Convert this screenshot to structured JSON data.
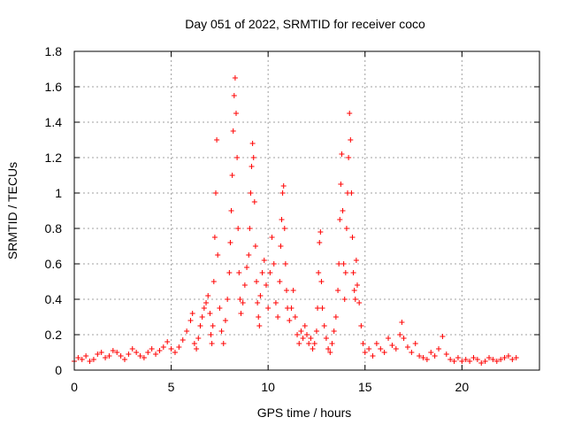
{
  "chart_data": {
    "type": "scatter",
    "title": "Day 051 of 2022, SRMTID for receiver coco",
    "xlabel": "GPS time / hours",
    "ylabel": "SRMTID / TECUs",
    "xlim": [
      0,
      24
    ],
    "ylim": [
      0,
      1.8
    ],
    "xticks": [
      0,
      5,
      10,
      15,
      20
    ],
    "xtick_labels": [
      "0",
      "5",
      "10",
      "15",
      "20"
    ],
    "yticks": [
      0,
      0.2,
      0.4,
      0.6,
      0.8,
      1.0,
      1.2,
      1.4,
      1.6,
      1.8
    ],
    "ytick_labels": [
      "0",
      "0.2",
      "0.4",
      "0.6",
      "0.8",
      "1",
      "1.2",
      "1.4",
      "1.6",
      "1.8"
    ],
    "grid": true,
    "marker": "+",
    "color": "#ff0000",
    "series": [
      {
        "name": "SRMTID",
        "x": [
          0.0,
          0.2,
          0.4,
          0.6,
          0.8,
          1.0,
          1.2,
          1.4,
          1.6,
          1.8,
          2.0,
          2.2,
          2.4,
          2.6,
          2.8,
          3.0,
          3.2,
          3.4,
          3.6,
          3.8,
          4.0,
          4.2,
          4.4,
          4.6,
          4.8,
          5.0,
          5.2,
          5.4,
          5.6,
          5.8,
          6.0,
          6.1,
          6.2,
          6.3,
          6.4,
          6.5,
          6.6,
          6.7,
          6.8,
          6.9,
          7.0,
          7.05,
          7.1,
          7.15,
          7.2,
          7.25,
          7.3,
          7.35,
          7.4,
          7.5,
          7.6,
          7.7,
          7.8,
          7.9,
          8.0,
          8.05,
          8.1,
          8.15,
          8.2,
          8.25,
          8.3,
          8.35,
          8.4,
          8.45,
          8.5,
          8.55,
          8.6,
          8.7,
          8.8,
          8.9,
          9.0,
          9.05,
          9.1,
          9.15,
          9.2,
          9.25,
          9.3,
          9.35,
          9.4,
          9.45,
          9.5,
          9.55,
          9.6,
          9.7,
          9.8,
          9.9,
          10.0,
          10.1,
          10.2,
          10.3,
          10.4,
          10.5,
          10.6,
          10.65,
          10.7,
          10.75,
          10.8,
          10.85,
          10.9,
          10.95,
          11.0,
          11.1,
          11.2,
          11.3,
          11.4,
          11.5,
          11.6,
          11.7,
          11.8,
          11.9,
          12.0,
          12.1,
          12.2,
          12.3,
          12.4,
          12.5,
          12.55,
          12.6,
          12.65,
          12.7,
          12.75,
          12.8,
          12.9,
          13.0,
          13.1,
          13.2,
          13.3,
          13.4,
          13.5,
          13.6,
          13.65,
          13.7,
          13.75,
          13.8,
          13.85,
          13.9,
          13.95,
          14.0,
          14.05,
          14.1,
          14.15,
          14.2,
          14.25,
          14.3,
          14.35,
          14.4,
          14.45,
          14.5,
          14.55,
          14.6,
          14.7,
          14.8,
          14.9,
          15.0,
          15.2,
          15.4,
          15.6,
          15.8,
          16.0,
          16.2,
          16.4,
          16.6,
          16.8,
          16.9,
          17.0,
          17.2,
          17.4,
          17.6,
          17.8,
          18.0,
          18.2,
          18.4,
          18.6,
          18.8,
          19.0,
          19.2,
          19.4,
          19.6,
          19.8,
          20.0,
          20.2,
          20.4,
          20.6,
          20.8,
          21.0,
          21.2,
          21.4,
          21.6,
          21.8,
          22.0,
          22.2,
          22.4,
          22.6,
          22.8
        ],
        "y": [
          0.05,
          0.07,
          0.06,
          0.08,
          0.05,
          0.06,
          0.09,
          0.1,
          0.07,
          0.08,
          0.11,
          0.1,
          0.08,
          0.06,
          0.09,
          0.12,
          0.1,
          0.08,
          0.07,
          0.1,
          0.12,
          0.09,
          0.11,
          0.13,
          0.16,
          0.12,
          0.1,
          0.13,
          0.17,
          0.22,
          0.28,
          0.32,
          0.15,
          0.12,
          0.18,
          0.25,
          0.3,
          0.35,
          0.38,
          0.42,
          0.32,
          0.2,
          0.15,
          0.25,
          0.5,
          0.75,
          1.0,
          1.3,
          0.65,
          0.35,
          0.22,
          0.15,
          0.28,
          0.4,
          0.55,
          0.72,
          0.9,
          1.1,
          1.35,
          1.55,
          1.65,
          1.45,
          1.2,
          0.8,
          0.55,
          0.4,
          0.32,
          0.38,
          0.48,
          0.58,
          0.65,
          0.8,
          1.0,
          1.15,
          1.28,
          1.2,
          0.95,
          0.7,
          0.5,
          0.38,
          0.3,
          0.25,
          0.42,
          0.55,
          0.62,
          0.48,
          0.35,
          0.55,
          0.75,
          0.6,
          0.38,
          0.3,
          0.5,
          0.7,
          0.85,
          1.0,
          1.04,
          0.8,
          0.6,
          0.45,
          0.35,
          0.28,
          0.35,
          0.45,
          0.3,
          0.2,
          0.15,
          0.22,
          0.18,
          0.25,
          0.2,
          0.15,
          0.18,
          0.12,
          0.15,
          0.22,
          0.35,
          0.55,
          0.72,
          0.78,
          0.5,
          0.35,
          0.25,
          0.18,
          0.12,
          0.1,
          0.15,
          0.22,
          0.3,
          0.45,
          0.6,
          0.85,
          1.05,
          1.22,
          0.9,
          0.6,
          0.4,
          0.55,
          0.8,
          1.0,
          1.2,
          1.45,
          1.3,
          1.0,
          0.75,
          0.55,
          0.45,
          0.4,
          0.62,
          0.48,
          0.38,
          0.25,
          0.15,
          0.1,
          0.12,
          0.08,
          0.15,
          0.12,
          0.1,
          0.18,
          0.14,
          0.12,
          0.2,
          0.27,
          0.18,
          0.13,
          0.1,
          0.15,
          0.08,
          0.07,
          0.06,
          0.1,
          0.08,
          0.12,
          0.19,
          0.09,
          0.06,
          0.05,
          0.07,
          0.05,
          0.06,
          0.05,
          0.07,
          0.06,
          0.04,
          0.05,
          0.07,
          0.06,
          0.05,
          0.06,
          0.07,
          0.08,
          0.06,
          0.07
        ]
      }
    ]
  }
}
